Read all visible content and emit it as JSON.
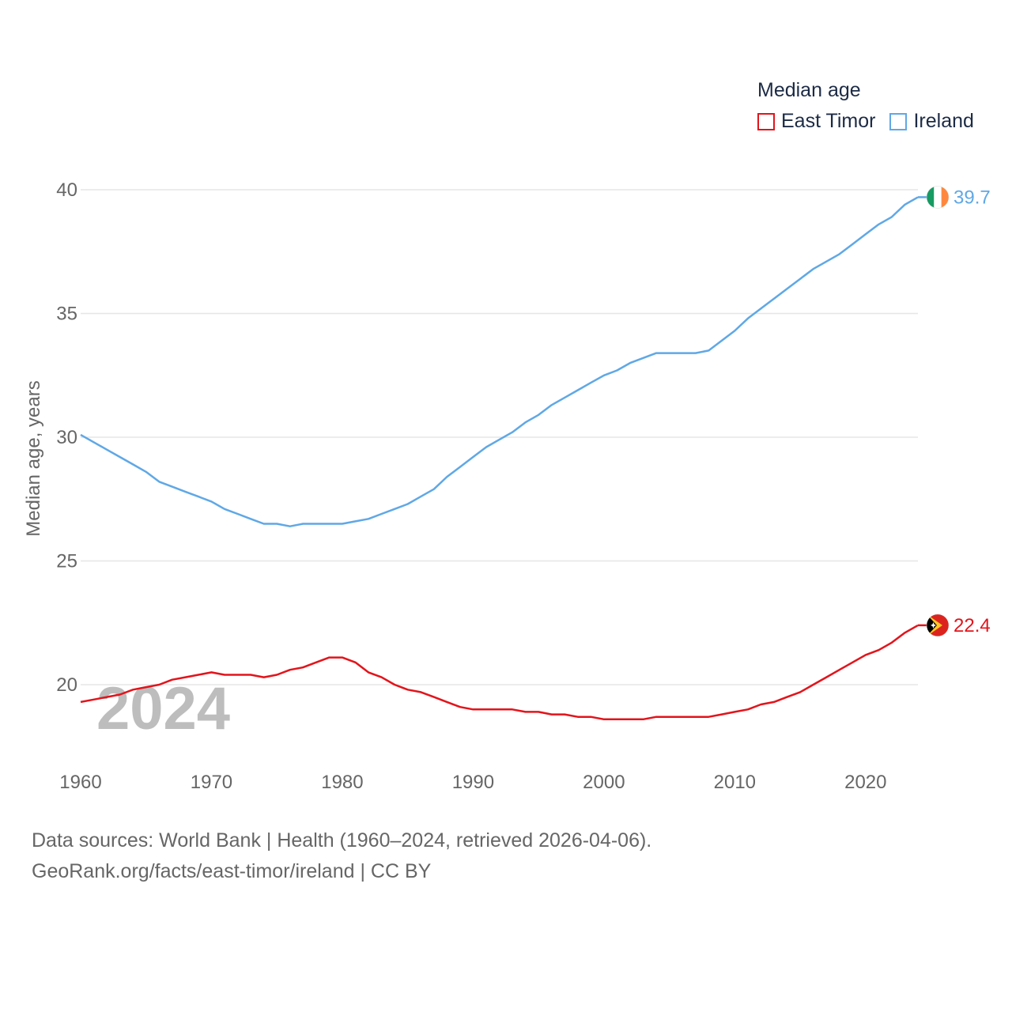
{
  "chart_data": {
    "type": "line",
    "year_label": "2024",
    "ylabel": "Median age, years",
    "ylim": [
      17,
      41
    ],
    "xlim": [
      1960,
      2024
    ],
    "x_ticks": [
      1960,
      1970,
      1980,
      1990,
      2000,
      2010,
      2020
    ],
    "y_ticks": [
      20,
      25,
      30,
      35,
      40
    ],
    "grid": true,
    "legend_title": "Median age",
    "series": [
      {
        "name": "East Timor",
        "color": "#e3141b",
        "end_label": "22.4",
        "flag_icon": "east-timor-flag-icon",
        "x": [
          1960,
          1961,
          1962,
          1963,
          1964,
          1965,
          1966,
          1967,
          1968,
          1969,
          1970,
          1971,
          1972,
          1973,
          1974,
          1975,
          1976,
          1977,
          1978,
          1979,
          1980,
          1981,
          1982,
          1983,
          1984,
          1985,
          1986,
          1987,
          1988,
          1989,
          1990,
          1991,
          1992,
          1993,
          1994,
          1995,
          1996,
          1997,
          1998,
          1999,
          2000,
          2001,
          2002,
          2003,
          2004,
          2005,
          2006,
          2007,
          2008,
          2009,
          2010,
          2011,
          2012,
          2013,
          2014,
          2015,
          2016,
          2017,
          2018,
          2019,
          2020,
          2021,
          2022,
          2023,
          2024
        ],
        "values": [
          19.3,
          19.4,
          19.5,
          19.6,
          19.8,
          19.9,
          20.0,
          20.2,
          20.3,
          20.4,
          20.5,
          20.4,
          20.4,
          20.4,
          20.3,
          20.4,
          20.6,
          20.7,
          20.9,
          21.1,
          21.1,
          20.9,
          20.5,
          20.3,
          20.0,
          19.8,
          19.7,
          19.5,
          19.3,
          19.1,
          19.0,
          19.0,
          19.0,
          19.0,
          18.9,
          18.9,
          18.8,
          18.8,
          18.7,
          18.7,
          18.6,
          18.6,
          18.6,
          18.6,
          18.7,
          18.7,
          18.7,
          18.7,
          18.7,
          18.8,
          18.9,
          19.0,
          19.2,
          19.3,
          19.5,
          19.7,
          20.0,
          20.3,
          20.6,
          20.9,
          21.2,
          21.4,
          21.7,
          22.1,
          22.4
        ]
      },
      {
        "name": "Ireland",
        "color": "#5fa8e6",
        "end_label": "39.7",
        "flag_icon": "ireland-flag-icon",
        "x": [
          1960,
          1961,
          1962,
          1963,
          1964,
          1965,
          1966,
          1967,
          1968,
          1969,
          1970,
          1971,
          1972,
          1973,
          1974,
          1975,
          1976,
          1977,
          1978,
          1979,
          1980,
          1981,
          1982,
          1983,
          1984,
          1985,
          1986,
          1987,
          1988,
          1989,
          1990,
          1991,
          1992,
          1993,
          1994,
          1995,
          1996,
          1997,
          1998,
          1999,
          2000,
          2001,
          2002,
          2003,
          2004,
          2005,
          2006,
          2007,
          2008,
          2009,
          2010,
          2011,
          2012,
          2013,
          2014,
          2015,
          2016,
          2017,
          2018,
          2019,
          2020,
          2021,
          2022,
          2023,
          2024
        ],
        "values": [
          30.1,
          29.8,
          29.5,
          29.2,
          28.9,
          28.6,
          28.2,
          28.0,
          27.8,
          27.6,
          27.4,
          27.1,
          26.9,
          26.7,
          26.5,
          26.5,
          26.4,
          26.5,
          26.5,
          26.5,
          26.5,
          26.6,
          26.7,
          26.9,
          27.1,
          27.3,
          27.6,
          27.9,
          28.4,
          28.8,
          29.2,
          29.6,
          29.9,
          30.2,
          30.6,
          30.9,
          31.3,
          31.6,
          31.9,
          32.2,
          32.5,
          32.7,
          33.0,
          33.2,
          33.4,
          33.4,
          33.4,
          33.4,
          33.5,
          33.9,
          34.3,
          34.8,
          35.2,
          35.6,
          36.0,
          36.4,
          36.8,
          37.1,
          37.4,
          37.8,
          38.2,
          38.6,
          38.9,
          39.4,
          39.7
        ]
      }
    ]
  },
  "sources": {
    "line1": "Data sources: World Bank | Health (1960–2024, retrieved 2026-04-06).",
    "line2": "GeoRank.org/facts/east-timor/ireland | CC BY"
  }
}
